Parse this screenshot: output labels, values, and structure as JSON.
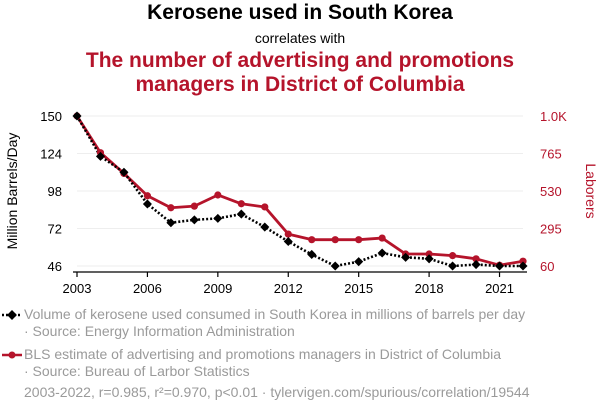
{
  "titles": {
    "main": "Kerosene used in South Korea",
    "connector": "correlates with",
    "secondary_line1": "The number of advertising and promotions",
    "secondary_line2": "managers in District of Columbia"
  },
  "legend": {
    "series1_text": "Volume of kerosene used consumed in South Korea in millions of barrels per day",
    "series1_source": "· Source: Energy Information Administration",
    "series2_text": "BLS estimate of advertising and promotions managers in District of Columbia",
    "series2_source": "· Source: Bureau of Larbor Statistics"
  },
  "footer": "2003-2022, r=0.985, r²=0.970, p<0.01 · tylervigen.com/spurious/correlation/19544",
  "colors": {
    "series1": "#000000",
    "series2": "#b5142b",
    "grid": "#eeeeee",
    "muted": "#9a9a9a"
  },
  "chart_data": {
    "type": "line",
    "x": [
      2003,
      2004,
      2005,
      2006,
      2007,
      2008,
      2009,
      2010,
      2011,
      2012,
      2013,
      2014,
      2015,
      2016,
      2017,
      2018,
      2019,
      2020,
      2021,
      2022
    ],
    "xticks": [
      2003,
      2006,
      2009,
      2012,
      2015,
      2018,
      2021
    ],
    "xtick_labels": [
      "2003",
      "2006",
      "2009",
      "2012",
      "2015",
      "2018",
      "2021"
    ],
    "y_left": {
      "label": "Million Barrels/Day",
      "ticks": [
        46,
        72,
        98,
        124,
        150
      ],
      "tick_labels": [
        "46",
        "72",
        "98",
        "124",
        "150"
      ],
      "range": [
        46,
        150
      ]
    },
    "y_right": {
      "label": "Laborers",
      "ticks": [
        60,
        295,
        530,
        765,
        1000
      ],
      "tick_labels": [
        "60",
        "295",
        "530",
        "765",
        "1.0K"
      ],
      "range": [
        60,
        1000
      ]
    },
    "series": [
      {
        "axis": "left",
        "style": "dotted-diamond",
        "values": [
          150,
          122,
          111,
          89,
          76,
          78,
          79,
          82,
          73,
          63,
          54,
          46,
          49,
          55,
          52,
          51,
          46,
          47,
          46,
          46
        ]
      },
      {
        "axis": "right",
        "style": "solid-circle",
        "values": [
          1000,
          770,
          640,
          500,
          425,
          435,
          505,
          450,
          430,
          260,
          225,
          225,
          225,
          235,
          135,
          135,
          125,
          105,
          65,
          90
        ]
      }
    ]
  }
}
